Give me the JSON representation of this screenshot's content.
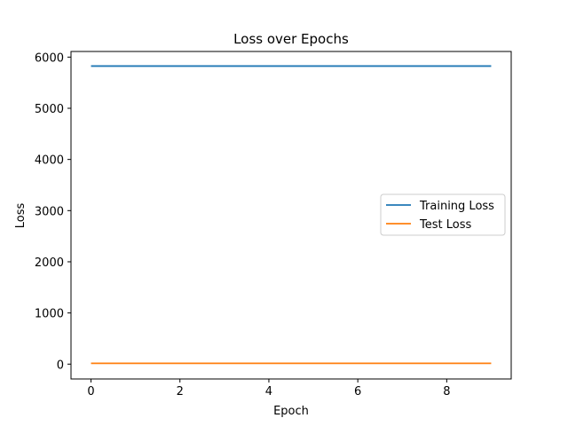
{
  "chart_data": {
    "type": "line",
    "title": "Loss over Epochs",
    "xlabel": "Epoch",
    "ylabel": "Loss",
    "x": [
      0,
      1,
      2,
      3,
      4,
      5,
      6,
      7,
      8,
      9
    ],
    "xlim": [
      -0.45,
      9.45
    ],
    "ylim": [
      -290,
      6110
    ],
    "xticks": [
      0,
      2,
      4,
      6,
      8
    ],
    "yticks": [
      0,
      1000,
      2000,
      3000,
      4000,
      5000,
      6000
    ],
    "grid": false,
    "legend_position": "center-right",
    "series": [
      {
        "name": "Training Loss",
        "color": "#1f77b4",
        "values": [
          5825,
          5825,
          5825,
          5825,
          5825,
          5825,
          5825,
          5825,
          5825,
          5825
        ]
      },
      {
        "name": "Test Loss",
        "color": "#ff7f0e",
        "values": [
          16,
          16,
          16,
          16,
          16,
          16,
          16,
          16,
          16,
          16
        ]
      }
    ]
  }
}
